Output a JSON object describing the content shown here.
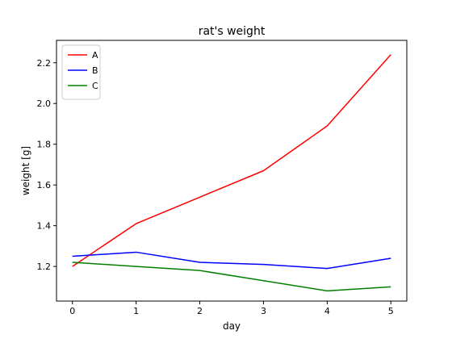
{
  "chart_data": {
    "type": "line",
    "title": "rat's weight",
    "xlabel": "day",
    "ylabel": "weight [g]",
    "x": [
      0,
      1,
      2,
      3,
      4,
      5
    ],
    "xlim": [
      -0.25,
      5.25
    ],
    "ylim": [
      1.03,
      2.31
    ],
    "xticks": [
      "0",
      "1",
      "2",
      "3",
      "4",
      "5"
    ],
    "yticks": [
      "1.2",
      "1.4",
      "1.6",
      "1.8",
      "2.0",
      "2.2"
    ],
    "ytick_values": [
      1.2,
      1.4,
      1.6,
      1.8,
      2.0,
      2.2
    ],
    "grid": false,
    "legend_position": "top-left",
    "series": [
      {
        "name": "A",
        "color": "#ff0000",
        "values": [
          1.2,
          1.41,
          1.54,
          1.67,
          1.89,
          2.24
        ]
      },
      {
        "name": "B",
        "color": "#0000ff",
        "values": [
          1.25,
          1.27,
          1.22,
          1.21,
          1.19,
          1.24
        ]
      },
      {
        "name": "C",
        "color": "#008000",
        "values": [
          1.22,
          1.2,
          1.18,
          1.13,
          1.08,
          1.1
        ]
      }
    ]
  }
}
